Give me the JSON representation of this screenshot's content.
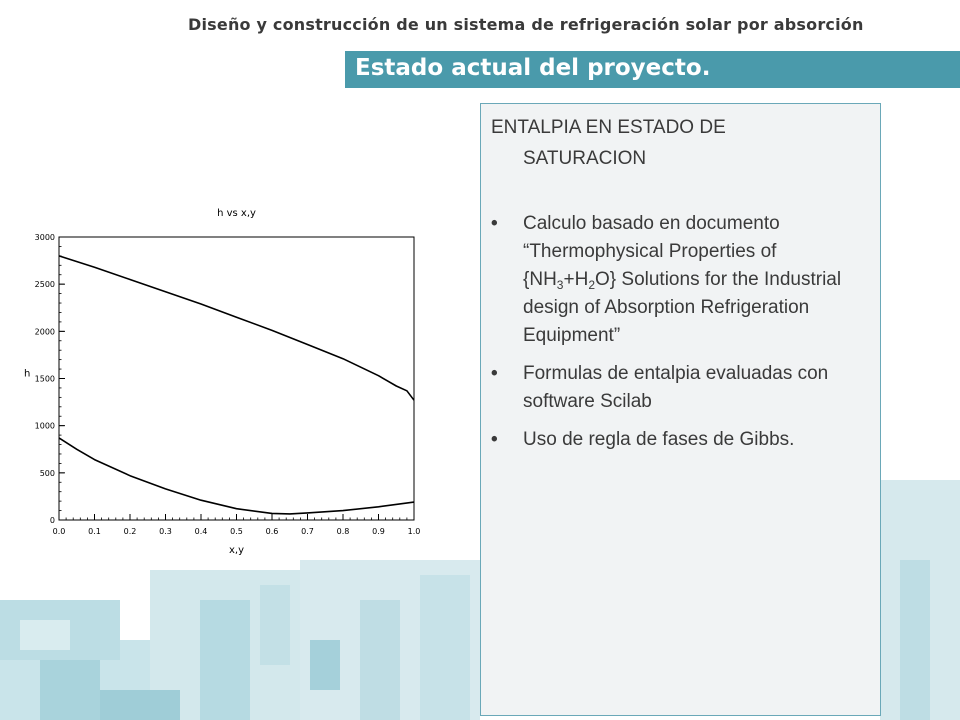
{
  "slide": {
    "header_title": "Diseño y construcción de un sistema de refrigeración solar por absorción",
    "banner_title": "Estado actual del proyecto."
  },
  "content": {
    "heading_line1": "ENTALPIA EN ESTADO DE",
    "heading_line2": "SATURACION",
    "bullet_char": "•",
    "bullet1": {
      "part_a": "Calculo basado en documento “Thermophysical Properties of {NH",
      "sub_a": "3",
      "part_b": "+H",
      "sub_b": "2",
      "part_c": "O} Solutions for the Industrial design of Absorption Refrigeration Equipment”"
    },
    "bullet2": "Formulas de entalpia evaluadas con software Scilab",
    "bullet3": "Uso de regla de fases de Gibbs."
  },
  "chart_data": {
    "type": "line",
    "title": "h vs x,y",
    "xlabel": "x,y",
    "ylabel": "h",
    "xlim": [
      0,
      1
    ],
    "ylim": [
      0,
      3000
    ],
    "xticks": [
      "0.0",
      "0.1",
      "0.2",
      "0.3",
      "0.4",
      "0.5",
      "0.6",
      "0.7",
      "0.8",
      "0.9",
      "1.0"
    ],
    "yticks": [
      "0",
      "500",
      "1000",
      "1500",
      "2000",
      "2500",
      "3000"
    ],
    "grid": false,
    "series": [
      {
        "x": [
          0.0,
          0.1,
          0.2,
          0.3,
          0.4,
          0.5,
          0.6,
          0.7,
          0.8,
          0.9,
          0.95,
          0.98,
          1.0
        ],
        "values": [
          2800,
          2680,
          2550,
          2420,
          2290,
          2150,
          2010,
          1860,
          1710,
          1530,
          1420,
          1370,
          1270
        ]
      },
      {
        "x": [
          0.0,
          0.05,
          0.1,
          0.2,
          0.3,
          0.4,
          0.5,
          0.6,
          0.65,
          0.7,
          0.8,
          0.9,
          1.0
        ],
        "values": [
          870,
          750,
          640,
          470,
          330,
          210,
          120,
          70,
          65,
          75,
          100,
          140,
          190
        ]
      }
    ]
  }
}
